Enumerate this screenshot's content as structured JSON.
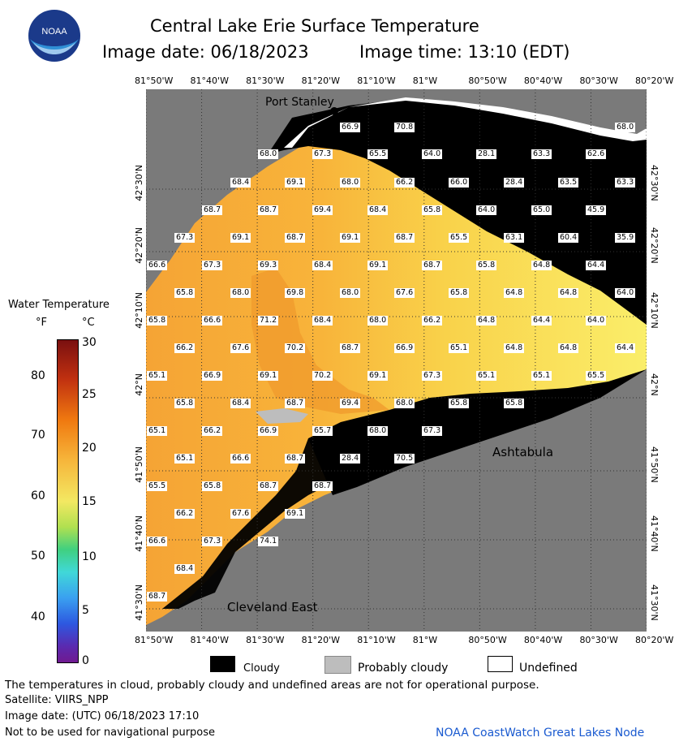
{
  "title": "Central Lake Erie Surface Temperature",
  "subtitle_date": "Image date: 06/18/2023",
  "subtitle_time": "Image time: 13:10 (EDT)",
  "logo_text": "NOAA",
  "colors": {
    "land": "#7a7a7a",
    "cloud": "#000000",
    "probably_cloudy": "#bdbdbd",
    "undefined": "#ffffff",
    "water": "#f7c43a"
  },
  "lon_labels": [
    "81°50'W",
    "81°40'W",
    "81°30'W",
    "81°20'W",
    "81°10'W",
    "81°W",
    "80°50'W",
    "80°40'W",
    "80°30'W",
    "80°20'W"
  ],
  "lat_labels": [
    "42°30'N",
    "42°20'N",
    "42°10'N",
    "42°N",
    "41°50'N",
    "41°40'N",
    "41°30'N"
  ],
  "places": {
    "port_stanley": "Port Stanley",
    "ashtabula": "Ashtabula",
    "cleveland_east": "Cleveland East"
  },
  "temps": [
    {
      "t": "66.9"
    },
    {
      "t": "70.8"
    },
    {
      "t": "68.0"
    },
    {
      "t": "68.0"
    },
    {
      "t": "67.3"
    },
    {
      "t": "65.5"
    },
    {
      "t": "64.0"
    },
    {
      "t": "28.1"
    },
    {
      "t": "63.3"
    },
    {
      "t": "62.6"
    },
    {
      "t": "68.4"
    },
    {
      "t": "69.1"
    },
    {
      "t": "68.0"
    },
    {
      "t": "66.2"
    },
    {
      "t": "66.0"
    },
    {
      "t": "28.4"
    },
    {
      "t": "63.5"
    },
    {
      "t": "63.3"
    },
    {
      "t": "68.7"
    },
    {
      "t": "68.7"
    },
    {
      "t": "69.4"
    },
    {
      "t": "68.4"
    },
    {
      "t": "65.8"
    },
    {
      "t": "64.0"
    },
    {
      "t": "65.0"
    },
    {
      "t": "45.9"
    },
    {
      "t": "67.3"
    },
    {
      "t": "69.1"
    },
    {
      "t": "68.7"
    },
    {
      "t": "69.1"
    },
    {
      "t": "68.7"
    },
    {
      "t": "65.5"
    },
    {
      "t": "63.1"
    },
    {
      "t": "60.4"
    },
    {
      "t": "35.9"
    },
    {
      "t": "66.6"
    },
    {
      "t": "67.3"
    },
    {
      "t": "69.3"
    },
    {
      "t": "68.4"
    },
    {
      "t": "69.1"
    },
    {
      "t": "68.7"
    },
    {
      "t": "65.8"
    },
    {
      "t": "64.8"
    },
    {
      "t": "64.4"
    },
    {
      "t": "65.8"
    },
    {
      "t": "68.0"
    },
    {
      "t": "69.8"
    },
    {
      "t": "68.0"
    },
    {
      "t": "67.6"
    },
    {
      "t": "65.8"
    },
    {
      "t": "64.8"
    },
    {
      "t": "64.8"
    },
    {
      "t": "64.0"
    },
    {
      "t": "65.8"
    },
    {
      "t": "66.6"
    },
    {
      "t": "71.2"
    },
    {
      "t": "68.4"
    },
    {
      "t": "68.0"
    },
    {
      "t": "66.2"
    },
    {
      "t": "64.8"
    },
    {
      "t": "64.4"
    },
    {
      "t": "64.0"
    },
    {
      "t": "66.2"
    },
    {
      "t": "67.6"
    },
    {
      "t": "70.2"
    },
    {
      "t": "68.7"
    },
    {
      "t": "66.9"
    },
    {
      "t": "65.1"
    },
    {
      "t": "64.8"
    },
    {
      "t": "64.8"
    },
    {
      "t": "64.4"
    },
    {
      "t": "65.1"
    },
    {
      "t": "66.9"
    },
    {
      "t": "69.1"
    },
    {
      "t": "70.2"
    },
    {
      "t": "69.1"
    },
    {
      "t": "67.3"
    },
    {
      "t": "65.1"
    },
    {
      "t": "65.1"
    },
    {
      "t": "65.5"
    },
    {
      "t": "65.8"
    },
    {
      "t": "68.4"
    },
    {
      "t": "68.7"
    },
    {
      "t": "69.4"
    },
    {
      "t": "68.0"
    },
    {
      "t": "65.8"
    },
    {
      "t": "65.8"
    },
    {
      "t": "65.1"
    },
    {
      "t": "66.2"
    },
    {
      "t": "66.9"
    },
    {
      "t": "65.7"
    },
    {
      "t": "68.0"
    },
    {
      "t": "67.3"
    },
    {
      "t": "65.1"
    },
    {
      "t": "66.6"
    },
    {
      "t": "68.7"
    },
    {
      "t": "28.4"
    },
    {
      "t": "70.5"
    },
    {
      "t": "65.5"
    },
    {
      "t": "65.8"
    },
    {
      "t": "68.7"
    },
    {
      "t": "68.7"
    },
    {
      "t": "66.2"
    },
    {
      "t": "67.6"
    },
    {
      "t": "69.1"
    },
    {
      "t": "66.6"
    },
    {
      "t": "67.3"
    },
    {
      "t": "74.1"
    },
    {
      "t": "68.4"
    },
    {
      "t": "68.7"
    }
  ],
  "colorbar": {
    "title": "Water Temperature",
    "unit_f": "°F",
    "unit_c": "°C",
    "f_ticks": [
      "80",
      "70",
      "60",
      "50",
      "40"
    ],
    "c_ticks": [
      "30",
      "25",
      "20",
      "15",
      "10",
      "5",
      "0"
    ]
  },
  "key": {
    "cloudy": "Cloudy",
    "probably_cloudy": "Probably cloudy",
    "undefined": "Undefined"
  },
  "footer": {
    "disclaimer": "The temperatures in cloud, probably cloudy and undefined areas are not for operational purpose.",
    "satellite": "Satellite: VIIRS_NPP",
    "utc_date": "Image date: (UTC) 06/18/2023  17:10",
    "navigation": "Not to be used for navigational purpose",
    "credit": "NOAA CoastWatch Great Lakes Node"
  }
}
